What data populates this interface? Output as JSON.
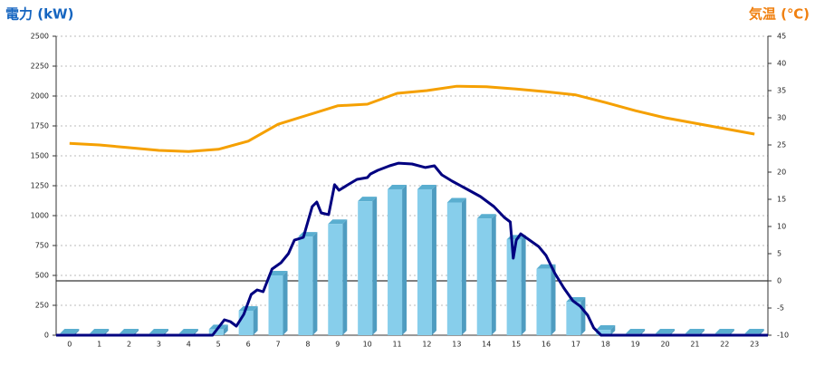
{
  "chart_data": {
    "type": "bar",
    "title_left": "電力 (kW)",
    "title_right": "気温 (℃)",
    "left_title_color": "#1565c0",
    "right_title_color": "#f08010",
    "categories": [
      "0",
      "1",
      "2",
      "3",
      "4",
      "5",
      "6",
      "7",
      "8",
      "9",
      "10",
      "11",
      "12",
      "13",
      "14",
      "15",
      "16",
      "17",
      "18",
      "19",
      "20",
      "21",
      "22",
      "23"
    ],
    "xlim": [
      -0.45,
      23.45
    ],
    "ylim": [
      0,
      2500
    ],
    "yticks": [
      0,
      250,
      500,
      750,
      1000,
      1250,
      1500,
      1750,
      2000,
      2250,
      2500
    ],
    "y2lim": [
      -10,
      45
    ],
    "y2ticks": [
      -10,
      -5,
      0,
      5,
      10,
      15,
      20,
      25,
      30,
      35,
      40,
      45
    ],
    "grid": true,
    "series": [
      {
        "type": "bar",
        "color": "#87ceeb",
        "values": [
          15,
          15,
          15,
          15,
          15,
          50,
          205,
          500,
          825,
          930,
          1120,
          1220,
          1220,
          1110,
          975,
          800,
          555,
          280,
          45,
          15,
          15,
          15,
          15,
          15
        ]
      },
      {
        "type": "line",
        "color": "#000080",
        "x": [
          -0.45,
          4.8,
          5.2,
          5.4,
          5.6,
          5.85,
          6.1,
          6.3,
          6.5,
          6.8,
          7.1,
          7.35,
          7.55,
          7.85,
          8.0,
          8.15,
          8.3,
          8.45,
          8.7,
          8.9,
          9.05,
          9.35,
          9.65,
          10.0,
          10.1,
          10.35,
          10.75,
          11.05,
          11.5,
          11.95,
          12.25,
          12.5,
          12.85,
          13.3,
          13.8,
          14.25,
          14.6,
          14.8,
          14.9,
          15.0,
          15.15,
          15.45,
          15.75,
          16.0,
          16.3,
          16.6,
          16.9,
          17.15,
          17.4,
          17.6,
          17.85,
          23.45
        ],
        "values": [
          0,
          0,
          129,
          114,
          76,
          174,
          341,
          379,
          364,
          553,
          606,
          682,
          795,
          818,
          947,
          1076,
          1114,
          1023,
          1008,
          1258,
          1212,
          1258,
          1303,
          1318,
          1348,
          1379,
          1417,
          1439,
          1432,
          1402,
          1417,
          1341,
          1288,
          1227,
          1159,
          1076,
          985,
          947,
          644,
          795,
          848,
          795,
          742,
          667,
          515,
          394,
          288,
          242,
          167,
          61,
          0,
          0
        ]
      },
      {
        "type": "line",
        "color": "#f5a000",
        "axis": "y2",
        "x": [
          0,
          1,
          2,
          3,
          4,
          5,
          6,
          7,
          8,
          9,
          10,
          11,
          12,
          13,
          14,
          15,
          16,
          17,
          18,
          19,
          20,
          21,
          22,
          23
        ],
        "values": [
          25.3,
          25,
          24.5,
          24,
          23.8,
          24.2,
          25.7,
          28.8,
          30.5,
          32.2,
          32.5,
          34.5,
          35,
          35.8,
          35.7,
          35.3,
          34.8,
          34.2,
          32.8,
          31.3,
          30,
          29,
          28,
          27
        ]
      }
    ]
  }
}
